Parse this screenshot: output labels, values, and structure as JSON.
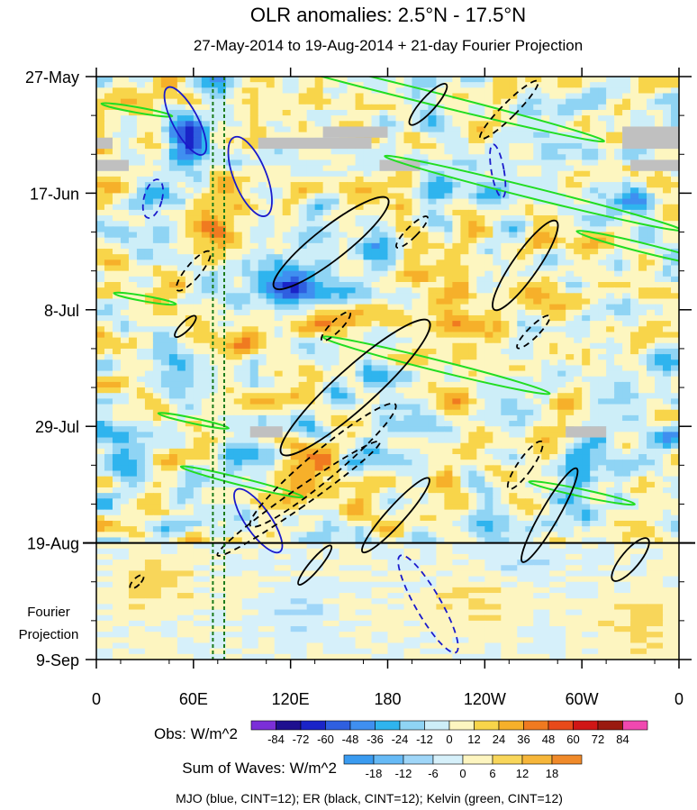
{
  "chart_data": {
    "type": "heatmap",
    "title": "OLR anomalies: 2.5°N - 17.5°N",
    "subtitle": "27-May-2014 to 19-Aug-2014 + 21-day Fourier Projection",
    "x_ticks": [
      "0",
      "60E",
      "120E",
      "180",
      "120W",
      "60W",
      "0"
    ],
    "x_range_deg_east": [
      0,
      360
    ],
    "y_ticks": [
      "27-May",
      "17-Jun",
      "8-Jul",
      "29-Jul",
      "19-Aug",
      "9-Sep"
    ],
    "y_range_days": [
      0,
      105
    ],
    "observation_end_label": "19-Aug",
    "projection_label_lines": [
      "Fourier",
      "Projection"
    ],
    "dashed_reference_lines_deg": [
      72,
      79
    ],
    "obs_colorbar": {
      "label": "Obs: W/m^2",
      "levels": [
        "-84",
        "-72",
        "-60",
        "-48",
        "-36",
        "-24",
        "-12",
        "0",
        "12",
        "24",
        "36",
        "48",
        "60",
        "72",
        "84"
      ],
      "colors": [
        "#7b2fd8",
        "#1e0f8f",
        "#1a24c8",
        "#2f5fe0",
        "#3f8ff0",
        "#2fb4ee",
        "#8fd4f4",
        "#cdeef8",
        "#fdf6c0",
        "#f8d54a",
        "#f6b02a",
        "#f07a20",
        "#e84a1a",
        "#d01616",
        "#9a1a10",
        "#f048b0"
      ]
    },
    "waves_colorbar": {
      "label": "Sum of Waves: W/m^2",
      "levels": [
        "-18",
        "-12",
        "-6",
        "0",
        "6",
        "12",
        "18"
      ],
      "colors": [
        "#3a9bf0",
        "#66baf6",
        "#9fd6f8",
        "#d6f0fa",
        "#fdf5c0",
        "#f8d65a",
        "#f6b63a",
        "#f08a2a"
      ]
    },
    "legend_note": "MJO (blue, CINT=12); ER (black, CINT=12); Kelvin (green, CINT=12)",
    "colors": {
      "mjo": "#1a1acc",
      "er": "#000000",
      "kelvin": "#22dd22",
      "missing": "#c0c0c0",
      "reference": "#1a7a1a"
    }
  }
}
